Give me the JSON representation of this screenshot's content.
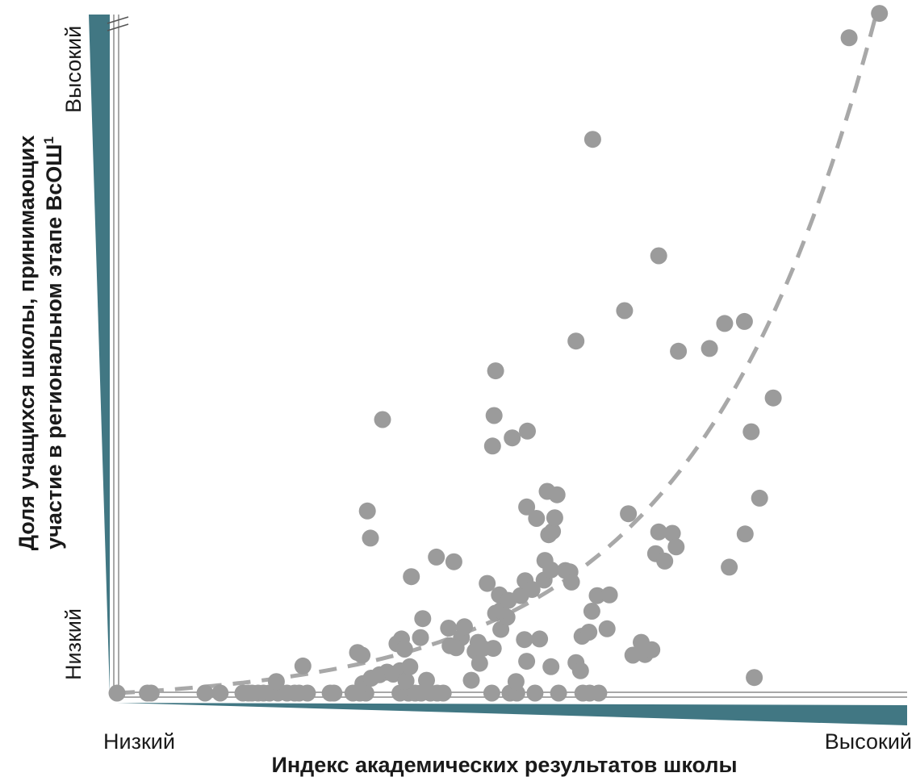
{
  "chart_data": {
    "type": "scatter",
    "title": "",
    "xlabel": "Индекс академических результатов школы",
    "ylabel": [
      "Доля учащихся школы, принимающих",
      "участие в региональном этапе ВсОШ"
    ],
    "ylabel_footnote": "1",
    "x_low_label": "Низкий",
    "x_high_label": "Высокий",
    "y_low_label": "Низкий",
    "y_high_label": "Высокий",
    "xlim": [
      0,
      100
    ],
    "ylim": [
      0,
      100
    ],
    "grid": false,
    "legend": "none",
    "colors": {
      "points": "#9b9b9b",
      "trend": "#a8a8a8",
      "wedge": "#417783",
      "axis": "#8c8c8c"
    },
    "trend": {
      "style": "dashed",
      "shape": "exponential",
      "y0": 0,
      "y1": 100,
      "k": 4.2
    },
    "points": [
      [
        0,
        0
      ],
      [
        4,
        0
      ],
      [
        4.5,
        0
      ],
      [
        11.6,
        0
      ],
      [
        13.6,
        0
      ],
      [
        16.6,
        0
      ],
      [
        17.3,
        0
      ],
      [
        17.8,
        0
      ],
      [
        18.6,
        0
      ],
      [
        19.3,
        0
      ],
      [
        20.1,
        0
      ],
      [
        21.2,
        0
      ],
      [
        22.4,
        0
      ],
      [
        23.4,
        0
      ],
      [
        24,
        0
      ],
      [
        25.1,
        0
      ],
      [
        28.1,
        0
      ],
      [
        28.6,
        0
      ],
      [
        31.1,
        0
      ],
      [
        32,
        0
      ],
      [
        32.8,
        0
      ],
      [
        37.3,
        0
      ],
      [
        38.4,
        0
      ],
      [
        39.3,
        0
      ],
      [
        40.1,
        0
      ],
      [
        41.3,
        0
      ],
      [
        42.2,
        0
      ],
      [
        43,
        0
      ],
      [
        49.4,
        0
      ],
      [
        51.8,
        0
      ],
      [
        52.7,
        0
      ],
      [
        55.1,
        0
      ],
      [
        58.2,
        0
      ],
      [
        61.4,
        0
      ],
      [
        62.3,
        0
      ],
      [
        63.5,
        0
      ],
      [
        21,
        1.7
      ],
      [
        24.5,
        4
      ],
      [
        32.4,
        1.4
      ],
      [
        33.5,
        2.2
      ],
      [
        34.6,
        2.7
      ],
      [
        35.6,
        3.1
      ],
      [
        36.4,
        2.8
      ],
      [
        37.3,
        3.3
      ],
      [
        38.1,
        1.8
      ],
      [
        38.6,
        3.9
      ],
      [
        40.8,
        1.9
      ],
      [
        31.7,
        6
      ],
      [
        32.3,
        5.6
      ],
      [
        46.7,
        1.9
      ],
      [
        52.6,
        1.7
      ],
      [
        36.9,
        7.3
      ],
      [
        37.5,
        8
      ],
      [
        37.9,
        6.5
      ],
      [
        40,
        8.2
      ],
      [
        40.3,
        11
      ],
      [
        43.7,
        9.6
      ],
      [
        43.9,
        7
      ],
      [
        45.4,
        8.2
      ],
      [
        44.7,
        6.7
      ],
      [
        45.8,
        9.8
      ],
      [
        47.2,
        6.2
      ],
      [
        47.8,
        4.4
      ],
      [
        47.6,
        7.5
      ],
      [
        48.2,
        6.6
      ],
      [
        49.6,
        6.6
      ],
      [
        50.6,
        9.4
      ],
      [
        51.4,
        11.2
      ],
      [
        49.9,
        11.8
      ],
      [
        50.6,
        12.2
      ],
      [
        50.4,
        14.5
      ],
      [
        51.6,
        13.7
      ],
      [
        48.8,
        16.2
      ],
      [
        53.2,
        14.4
      ],
      [
        53.8,
        16.6
      ],
      [
        54.7,
        15.3
      ],
      [
        56.3,
        16.7
      ],
      [
        53.7,
        7.9
      ],
      [
        54,
        4.7
      ],
      [
        55.7,
        8
      ],
      [
        57.2,
        3.9
      ],
      [
        60.5,
        4.5
      ],
      [
        61.1,
        3.3
      ],
      [
        61.3,
        8.4
      ],
      [
        62.2,
        9
      ],
      [
        62.6,
        12.1
      ],
      [
        64.6,
        9.5
      ],
      [
        63.3,
        14.4
      ],
      [
        64.9,
        14.5
      ],
      [
        57.2,
        18.2
      ],
      [
        59.1,
        18.1
      ],
      [
        59.7,
        17.9
      ],
      [
        59.9,
        16.4
      ],
      [
        56.4,
        19.6
      ],
      [
        56.9,
        23.4
      ],
      [
        57.4,
        23.9
      ],
      [
        55.3,
        25.8
      ],
      [
        57.7,
        25.9
      ],
      [
        56.7,
        29.8
      ],
      [
        58,
        29.3
      ],
      [
        54,
        27.5
      ],
      [
        67.4,
        26.5
      ],
      [
        69.1,
        7.5
      ],
      [
        68,
        5.6
      ],
      [
        69.6,
        5.7
      ],
      [
        70.5,
        6.4
      ],
      [
        71.4,
        23.8
      ],
      [
        71,
        20.6
      ],
      [
        73.2,
        23.6
      ],
      [
        73.7,
        21.6
      ],
      [
        72.2,
        19.5
      ],
      [
        80.7,
        18.6
      ],
      [
        82.8,
        23.5
      ],
      [
        84.7,
        28.8
      ],
      [
        84,
        2.3
      ],
      [
        33,
        26.9
      ],
      [
        33.4,
        22.9
      ],
      [
        38.8,
        17.2
      ],
      [
        42.1,
        20.1
      ],
      [
        44.4,
        19.4
      ],
      [
        35,
        40.4
      ],
      [
        49.7,
        41
      ],
      [
        49.5,
        36.5
      ],
      [
        52.1,
        37.7
      ],
      [
        54.1,
        38.7
      ],
      [
        49.9,
        47.6
      ],
      [
        60.5,
        52
      ],
      [
        62.7,
        81.8
      ],
      [
        66.9,
        56.5
      ],
      [
        71.4,
        64.6
      ],
      [
        74,
        50.5
      ],
      [
        78.1,
        50.9
      ],
      [
        80.1,
        54.6
      ],
      [
        82.7,
        54.9
      ],
      [
        83.6,
        38.6
      ],
      [
        86.5,
        43.6
      ],
      [
        100.5,
        100.4
      ],
      [
        96.5,
        96.8
      ]
    ]
  }
}
